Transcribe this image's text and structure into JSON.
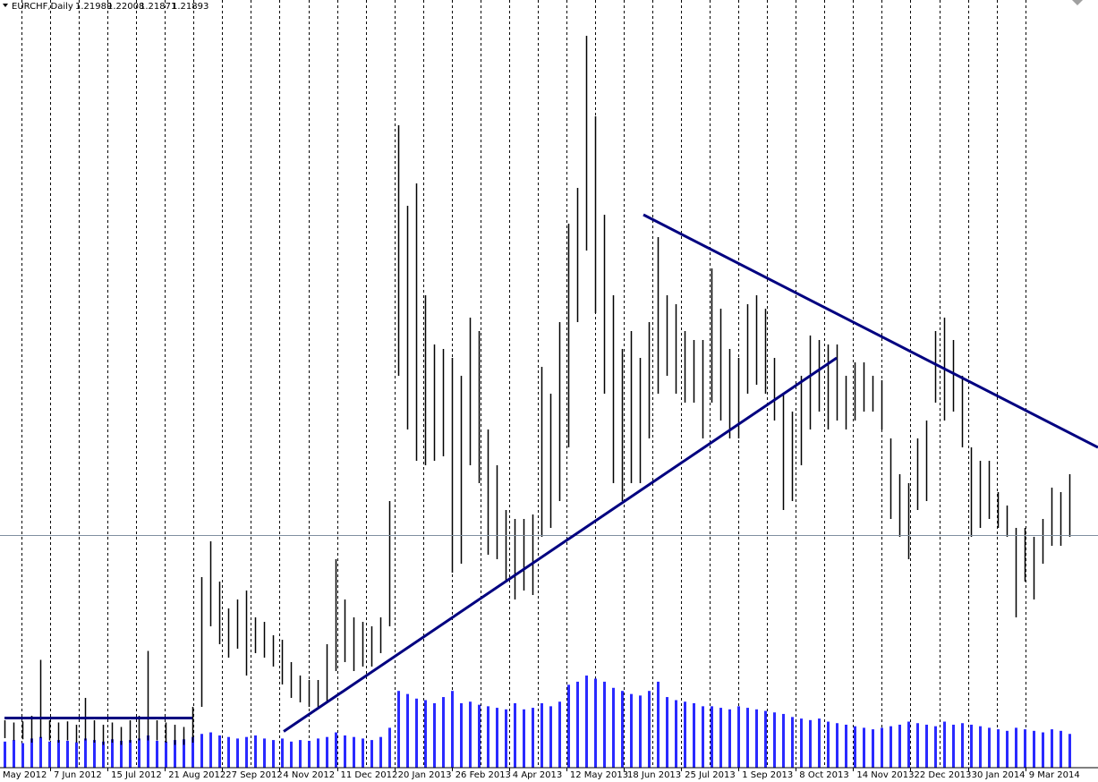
{
  "chart_data": {
    "type": "hilo",
    "title": "EURCHF,Daily",
    "last": {
      "open": 1.21989,
      "high": 1.22008,
      "low": 1.21871,
      "close": 1.21893
    },
    "x_labels": [
      "May 2012",
      "7 Jun 2012",
      "15 Jul 2012",
      "21 Aug 2012",
      "27 Sep 2012",
      "4 Nov 2012",
      "11 Dec 2012",
      "20 Jan 2013",
      "26 Feb 2013",
      "4 Apr 2013",
      "12 May 2013",
      "18 Jun 2013",
      "25 Jul 2013",
      "1 Sep 2013",
      "8 Oct 2013",
      "14 Nov 2013",
      "22 Dec 2013",
      "30 Jan 2014",
      "9 Mar 2014"
    ],
    "ylim": [
      1.19816,
      1.2668
    ],
    "volume_ylim": [
      0,
      5000
    ],
    "bar_color": "#000000",
    "volume_color": "#2a2aff",
    "high": [
      1.2024,
      1.2022,
      1.2023,
      1.2028,
      1.2078,
      1.2024,
      1.2022,
      1.2023,
      1.202,
      1.2044,
      1.2024,
      1.202,
      1.2022,
      1.2018,
      1.2024,
      1.2028,
      1.2086,
      1.2024,
      1.2022,
      1.202,
      1.2018,
      1.2036,
      1.2152,
      1.2184,
      1.2148,
      1.2124,
      1.2132,
      1.214,
      1.2116,
      1.2112,
      1.21,
      1.2096,
      1.2076,
      1.2064,
      1.206,
      1.206,
      1.2092,
      1.2168,
      1.2132,
      1.2116,
      1.2112,
      1.2108,
      1.2116,
      1.222,
      1.2556,
      1.2484,
      1.2504,
      1.2404,
      1.236,
      1.2356,
      1.2348,
      1.2332,
      1.2384,
      1.2372,
      1.2284,
      1.2252,
      1.2212,
      1.2204,
      1.2204,
      1.2208,
      1.234,
      1.2316,
      1.238,
      1.2468,
      1.25,
      1.2636,
      1.2564,
      1.2476,
      1.2404,
      1.2356,
      1.2372,
      1.2348,
      1.238,
      1.2456,
      1.2404,
      1.2396,
      1.2372,
      1.2364,
      1.2364,
      1.2428,
      1.2392,
      1.2356,
      1.2348,
      1.2396,
      1.2404,
      1.2392,
      1.2348,
      1.2316,
      1.23,
      1.2332,
      1.2368,
      1.2364,
      1.236,
      1.236,
      1.2332,
      1.2344,
      1.2344,
      1.2332,
      1.2328,
      1.2276,
      1.2244,
      1.2236,
      1.2276,
      1.2292,
      1.2372,
      1.2384,
      1.2364,
      1.2332,
      1.2268,
      1.2256,
      1.2256,
      1.2228,
      1.2216,
      1.2196,
      1.2196,
      1.2188,
      1.2204,
      1.2232,
      1.2228,
      1.2244
    ],
    "low": [
      1.2008,
      1.2006,
      1.2007,
      1.2004,
      1.2008,
      1.2006,
      1.2004,
      1.2006,
      1.2004,
      1.2006,
      1.2004,
      1.2002,
      1.2004,
      1.2002,
      1.2004,
      1.2006,
      1.2006,
      1.2006,
      1.2004,
      1.2002,
      1.2002,
      1.2004,
      1.2036,
      1.2108,
      1.2092,
      1.208,
      1.2088,
      1.2064,
      1.2084,
      1.208,
      1.2072,
      1.2056,
      1.2044,
      1.204,
      1.2036,
      1.2036,
      1.204,
      1.2068,
      1.2076,
      1.2068,
      1.2072,
      1.2072,
      1.2084,
      1.2108,
      1.2332,
      1.2284,
      1.2256,
      1.2252,
      1.2256,
      1.226,
      1.2156,
      1.2164,
      1.2252,
      1.2236,
      1.2172,
      1.2168,
      1.2148,
      1.2132,
      1.214,
      1.2136,
      1.2188,
      1.2196,
      1.222,
      1.2268,
      1.238,
      1.2444,
      1.2388,
      1.2316,
      1.2236,
      1.222,
      1.2236,
      1.2236,
      1.2276,
      1.2316,
      1.2332,
      1.2316,
      1.2308,
      1.2308,
      1.2276,
      1.2308,
      1.2292,
      1.2276,
      1.2276,
      1.2316,
      1.2324,
      1.2316,
      1.2292,
      1.2212,
      1.222,
      1.2252,
      1.2284,
      1.23,
      1.2284,
      1.2292,
      1.2284,
      1.2292,
      1.23,
      1.23,
      1.2284,
      1.2204,
      1.2188,
      1.2168,
      1.2212,
      1.222,
      1.2308,
      1.2292,
      1.23,
      1.2268,
      1.2188,
      1.2196,
      1.2204,
      1.2196,
      1.2188,
      1.2116,
      1.2148,
      1.2132,
      1.2164,
      1.218,
      1.218,
      1.2188
    ],
    "volume": [
      170,
      180,
      160,
      190,
      200,
      170,
      180,
      175,
      165,
      190,
      180,
      170,
      185,
      175,
      180,
      190,
      210,
      175,
      170,
      180,
      185,
      200,
      220,
      230,
      210,
      200,
      190,
      200,
      210,
      190,
      180,
      190,
      170,
      180,
      175,
      190,
      200,
      230,
      210,
      200,
      190,
      180,
      200,
      260,
      500,
      480,
      450,
      440,
      420,
      460,
      500,
      420,
      430,
      410,
      400,
      390,
      380,
      420,
      380,
      390,
      420,
      400,
      430,
      540,
      560,
      600,
      580,
      560,
      520,
      500,
      480,
      470,
      500,
      560,
      460,
      440,
      430,
      420,
      400,
      400,
      390,
      380,
      400,
      390,
      380,
      370,
      360,
      350,
      330,
      320,
      310,
      320,
      300,
      290,
      280,
      270,
      260,
      250,
      260,
      270,
      280,
      300,
      290,
      280,
      270,
      300,
      280,
      290,
      280,
      270,
      260,
      250,
      240,
      260,
      250,
      240,
      230,
      250,
      240,
      220
    ],
    "trendlines": [
      {
        "color": "#000080",
        "x": [
          0,
          21
        ],
        "y": [
          1.2026,
          1.2026
        ]
      },
      {
        "color": "#000080",
        "x": [
          31.2,
          93
        ],
        "y": [
          1.2014,
          1.2348
        ]
      },
      {
        "color": "#000080",
        "x": [
          71.4,
          122.2
        ],
        "y": [
          1.2476,
          1.2268
        ]
      }
    ]
  }
}
